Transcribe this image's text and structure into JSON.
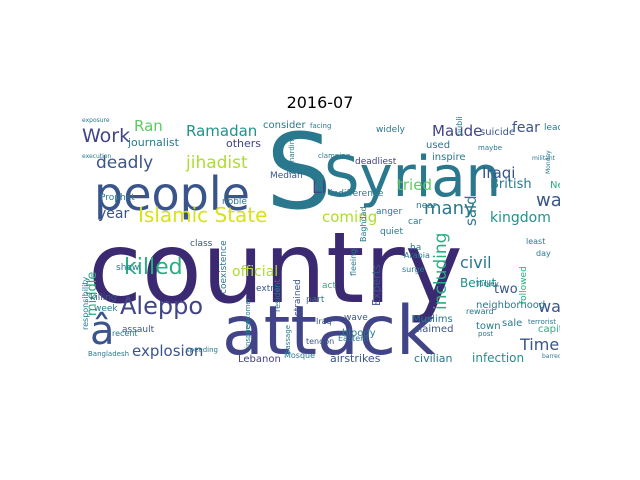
{
  "title": "2016-07",
  "palette": {
    "dark_purple": "#3b2a71",
    "indigo": "#414487",
    "blue": "#3a548c",
    "teal": "#2a788e",
    "teal_green": "#21918c",
    "green": "#29af7f",
    "light_green": "#5ec962",
    "yellow_green": "#addc30",
    "yellow": "#d8e219"
  },
  "words": [
    {
      "text": "country",
      "color": "dark_purple"
    },
    {
      "text": "attack",
      "color": "indigo"
    },
    {
      "text": "Syrian",
      "color": "teal"
    },
    {
      "text": "S",
      "color": "teal"
    },
    {
      "text": "people",
      "color": "blue"
    },
    {
      "text": "Islamic State",
      "color": "yellow"
    },
    {
      "text": "killed",
      "color": "green"
    },
    {
      "text": "Aleppo",
      "color": "indigo"
    },
    {
      "text": "â",
      "color": "blue"
    },
    {
      "text": "Work",
      "color": "indigo"
    },
    {
      "text": "deadly",
      "color": "blue"
    },
    {
      "text": "jihadist",
      "color": "yellow_green"
    },
    {
      "text": "Ramadan",
      "color": "teal_green"
    },
    {
      "text": "Ran",
      "color": "light_green"
    },
    {
      "text": "coming",
      "color": "yellow_green"
    },
    {
      "text": "Maude",
      "color": "indigo"
    },
    {
      "text": "war",
      "color": "blue"
    },
    {
      "text": "Time",
      "color": "blue"
    },
    {
      "text": "wa",
      "color": "blue"
    },
    {
      "text": "many",
      "color": "teal"
    },
    {
      "text": "tried",
      "color": "light_green"
    },
    {
      "text": "said",
      "color": "teal"
    },
    {
      "text": "including",
      "color": "green"
    },
    {
      "text": "explosion",
      "color": "blue"
    },
    {
      "text": "official",
      "color": "yellow_green"
    },
    {
      "text": "civil",
      "color": "teal"
    },
    {
      "text": "Iraqi",
      "color": "blue"
    },
    {
      "text": "kingdom",
      "color": "teal_green"
    },
    {
      "text": "fear",
      "color": "blue"
    },
    {
      "text": "British",
      "color": "teal"
    },
    {
      "text": "two",
      "color": "blue"
    },
    {
      "text": "Ll",
      "color": "indigo"
    },
    {
      "text": "year",
      "color": "blue"
    },
    {
      "text": "middle",
      "color": "green"
    },
    {
      "text": "infection",
      "color": "teal_green"
    },
    {
      "text": "journalist",
      "color": "teal"
    },
    {
      "text": "others",
      "color": "indigo"
    },
    {
      "text": "used",
      "color": "teal"
    },
    {
      "text": "consider",
      "color": "teal"
    },
    {
      "text": "Experts",
      "color": "blue"
    },
    {
      "text": "Beirut",
      "color": "teal_green"
    },
    {
      "text": "civilian",
      "color": "teal"
    },
    {
      "text": "airstrikes",
      "color": "blue"
    },
    {
      "text": "Lebanon",
      "color": "indigo"
    },
    {
      "text": "Muslims",
      "color": "teal"
    },
    {
      "text": "bloody",
      "color": "teal"
    },
    {
      "text": "sale",
      "color": "teal"
    },
    {
      "text": "capital",
      "color": "green"
    },
    {
      "text": "town",
      "color": "teal"
    },
    {
      "text": "neighborhood",
      "color": "teal"
    },
    {
      "text": "claimed",
      "color": "blue"
    },
    {
      "text": "suicide",
      "color": "blue"
    },
    {
      "text": "leader",
      "color": "teal"
    },
    {
      "text": "inspire",
      "color": "teal"
    },
    {
      "text": "widely",
      "color": "teal"
    },
    {
      "text": "deadliest",
      "color": "indigo"
    },
    {
      "text": "Median",
      "color": "blue"
    },
    {
      "text": "indifference",
      "color": "teal"
    },
    {
      "text": "noble",
      "color": "teal"
    },
    {
      "text": "Prophet",
      "color": "teal"
    },
    {
      "text": "assault",
      "color": "blue"
    },
    {
      "text": "class",
      "color": "blue"
    },
    {
      "text": "coexistence",
      "color": "teal"
    },
    {
      "text": "extra",
      "color": "blue"
    },
    {
      "text": "strained",
      "color": "blue"
    },
    {
      "text": "wave",
      "color": "blue"
    },
    {
      "text": "part",
      "color": "teal"
    },
    {
      "text": "act",
      "color": "green"
    },
    {
      "text": "show",
      "color": "teal"
    },
    {
      "text": "killing",
      "color": "blue"
    },
    {
      "text": "week",
      "color": "teal"
    },
    {
      "text": "recent",
      "color": "teal"
    },
    {
      "text": "responsibility",
      "color": "teal"
    },
    {
      "text": "Bangladesh",
      "color": "teal"
    },
    {
      "text": "Mosque",
      "color": "teal"
    },
    {
      "text": "Iraq",
      "color": "blue"
    },
    {
      "text": "Eastern",
      "color": "teal"
    },
    {
      "text": "reward",
      "color": "teal"
    },
    {
      "text": "terrorist",
      "color": "teal"
    },
    {
      "text": "followed",
      "color": "green"
    },
    {
      "text": "New",
      "color": "green"
    },
    {
      "text": "surge",
      "color": "teal"
    },
    {
      "text": "car",
      "color": "teal"
    },
    {
      "text": "near",
      "color": "teal"
    },
    {
      "text": "anger",
      "color": "teal"
    },
    {
      "text": "quiet",
      "color": "teal"
    },
    {
      "text": "ha",
      "color": "teal"
    },
    {
      "text": "day",
      "color": "teal"
    },
    {
      "text": "least",
      "color": "teal"
    },
    {
      "text": "Arabia",
      "color": "teal"
    },
    {
      "text": "tendon",
      "color": "blue"
    },
    {
      "text": "Baghdad",
      "color": "teal"
    },
    {
      "text": "fleeing",
      "color": "teal"
    },
    {
      "text": "resident",
      "color": "teal"
    },
    {
      "text": "public",
      "color": "teal"
    },
    {
      "text": "maybe",
      "color": "teal"
    },
    {
      "text": "facing",
      "color": "teal"
    },
    {
      "text": "clamping",
      "color": "teal"
    },
    {
      "text": "Bernardino",
      "color": "teal"
    },
    {
      "text": "execution",
      "color": "teal"
    },
    {
      "text": "speeding",
      "color": "teal"
    },
    {
      "text": "Turkey",
      "color": "teal"
    },
    {
      "text": "post",
      "color": "teal"
    },
    {
      "text": "barred",
      "color": "teal"
    },
    {
      "text": "militant",
      "color": "teal"
    },
    {
      "text": "Monday",
      "color": "teal"
    },
    {
      "text": "passage",
      "color": "teal"
    },
    {
      "text": "newcomer",
      "color": "teal"
    },
    {
      "text": "inspired",
      "color": "teal"
    },
    {
      "text": "exposure",
      "color": "teal"
    }
  ]
}
